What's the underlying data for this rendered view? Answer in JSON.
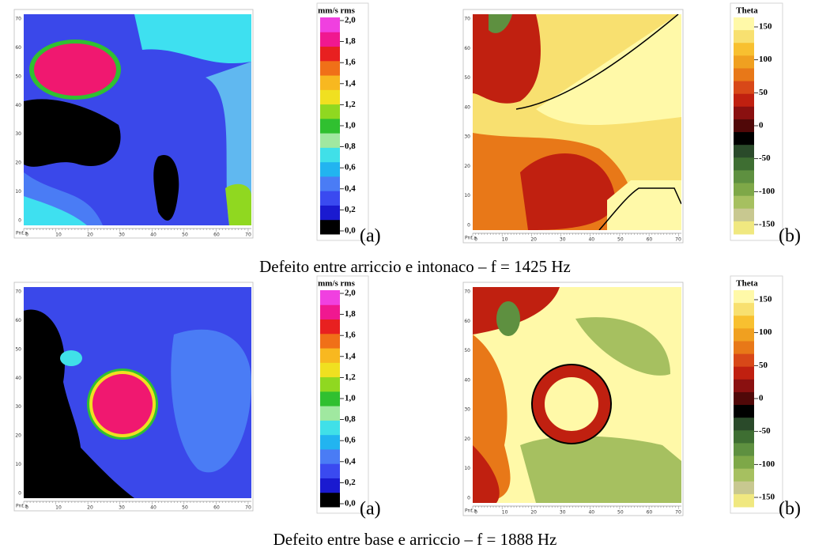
{
  "figure": {
    "rows": [
      {
        "panels": [
          {
            "label": "(a)",
            "y_ticks": [
              "70",
              "60",
              "50",
              "40",
              "30",
              "20",
              "10",
              "0"
            ],
            "x_corner": "Pnt.s",
            "x_ticks": [
              "0",
              "10",
              "20",
              "30",
              "40",
              "50",
              "60",
              "70"
            ],
            "colorbar": {
              "title": "mm/s rms",
              "ticks": [
                "2,0",
                "1,8",
                "1,6",
                "1,4",
                "1,2",
                "1,0",
                "0,8",
                "0,6",
                "0,4",
                "0,2",
                "0,0"
              ]
            }
          },
          {
            "label": "(b)",
            "y_ticks": [
              "70",
              "60",
              "50",
              "40",
              "30",
              "20",
              "10",
              "0"
            ],
            "x_corner": "Pnt.s",
            "x_ticks": [
              "0",
              "10",
              "20",
              "30",
              "40",
              "50",
              "60",
              "70"
            ],
            "colorbar": {
              "title": "Theta",
              "ticks": [
                "150",
                "100",
                "50",
                "0",
                "-50",
                "-100",
                "-150"
              ]
            }
          }
        ],
        "caption": "Defeito entre arriccio e intonaco – f = 1425 Hz"
      },
      {
        "panels": [
          {
            "label": "(a)",
            "y_ticks": [
              "70",
              "60",
              "50",
              "40",
              "30",
              "20",
              "10",
              "0"
            ],
            "x_corner": "Pnt.s",
            "x_ticks": [
              "0",
              "10",
              "20",
              "30",
              "40",
              "50",
              "60",
              "70"
            ],
            "colorbar": {
              "title": "mm/s rms",
              "ticks": [
                "2,0",
                "1,8",
                "1,6",
                "1,4",
                "1,2",
                "1,0",
                "0,8",
                "0,6",
                "0,4",
                "0,2",
                "0,0"
              ]
            }
          },
          {
            "label": "(b)",
            "y_ticks": [
              "70",
              "60",
              "50",
              "40",
              "30",
              "20",
              "10",
              "0"
            ],
            "x_corner": "Pnt.s",
            "x_ticks": [
              "0",
              "10",
              "20",
              "30",
              "40",
              "50",
              "60",
              "70"
            ],
            "colorbar": {
              "title": "Theta",
              "ticks": [
                "150",
                "100",
                "50",
                "0",
                "-50",
                "-100",
                "-150"
              ]
            }
          }
        ],
        "caption": "Defeito entre base e arriccio – f = 1888 Hz"
      }
    ]
  }
}
